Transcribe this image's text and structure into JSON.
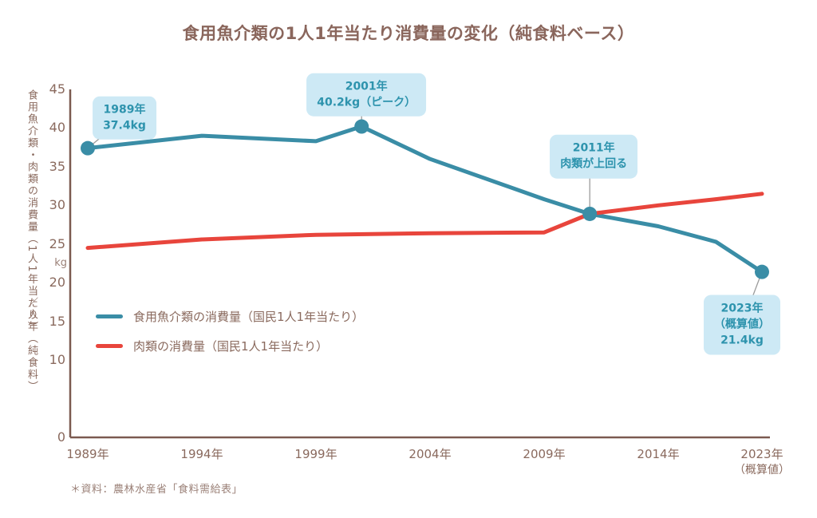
{
  "title": "食用魚介類の1人1年当たり消費量の変化（純食料ベース）",
  "source_note": "＊資料：農林水産省「食料需給表」",
  "colors": {
    "fish_line": "#3a8da6",
    "meat_line": "#e8453c",
    "axis": "#7b5a50",
    "text": "#8a6a5e",
    "callout_bg": "#cde9f5",
    "callout_text": "#2d93ad",
    "connector": "#9b9b9b"
  },
  "y_axis": {
    "label": "食用魚介類・肉類の消費量（1人1年当たり）",
    "unit_kg": "kg",
    "unit_suffix": "／人年（純食料）",
    "ticks": [
      45,
      40,
      35,
      30,
      25,
      20,
      15,
      10,
      0
    ],
    "max": 45
  },
  "x_axis": {
    "ticks": [
      "1989年",
      "1994年",
      "1999年",
      "2004年",
      "2009年",
      "2014年",
      "2023年"
    ],
    "last_tick_sub": "（概算値）"
  },
  "legend": {
    "fish": "食用魚介類の消費量（国民1人1年当たり）",
    "meat": "肉類の消費量（国民1人1年当たり）"
  },
  "annotations": [
    {
      "id": "a1989",
      "line1": "1989年",
      "line2": "37.4kg",
      "line3": "",
      "year": 1989,
      "value": 37.4
    },
    {
      "id": "a2001",
      "line1": "2001年",
      "line2": "40.2kg（ピーク）",
      "line3": "",
      "year": 2001,
      "value": 40.2
    },
    {
      "id": "a2011",
      "line1": "2011年",
      "line2": "肉類が上回る",
      "line3": "",
      "year": 2011,
      "value": 28.9
    },
    {
      "id": "a2023",
      "line1": "2023年",
      "line2": "（概算値）",
      "line3": "21.4kg",
      "year": 2023,
      "value": 21.4
    }
  ],
  "chart_data": {
    "type": "line",
    "title": "食用魚介類の1人1年当たり消費量の変化（純食料ベース）",
    "ylabel": "食用魚介類・肉類の消費量（1人1年当たり） kg／人年（純食料）",
    "ylim": [
      0,
      45
    ],
    "grid": false,
    "legend_position": "inside-left",
    "x_tick_years": [
      1989,
      1994,
      1999,
      2004,
      2009,
      2014,
      2023
    ],
    "series": [
      {
        "name": "食用魚介類の消費量（国民1人1年当たり）",
        "color": "#3a8da6",
        "points": [
          [
            1989,
            37.4
          ],
          [
            1994,
            39.0
          ],
          [
            1999,
            38.3
          ],
          [
            2001,
            40.2
          ],
          [
            2004,
            36.0
          ],
          [
            2009,
            30.8
          ],
          [
            2011,
            28.9
          ],
          [
            2014,
            27.3
          ],
          [
            2019,
            25.3
          ],
          [
            2023,
            21.4
          ]
        ],
        "marker_years": [
          1989,
          2001,
          2011,
          2023
        ]
      },
      {
        "name": "肉類の消費量（国民1人1年当たり）",
        "color": "#e8453c",
        "points": [
          [
            1989,
            24.5
          ],
          [
            1994,
            25.6
          ],
          [
            1999,
            26.2
          ],
          [
            2004,
            26.4
          ],
          [
            2009,
            26.5
          ],
          [
            2011,
            28.9
          ],
          [
            2014,
            30.0
          ],
          [
            2019,
            30.8
          ],
          [
            2023,
            31.5
          ]
        ],
        "marker_years": []
      }
    ],
    "annotated_values": {
      "fish_1989": "37.4kg",
      "fish_2001_peak": "40.2kg",
      "crossover_year": "2011年",
      "fish_2023_preliminary": "21.4kg"
    }
  }
}
